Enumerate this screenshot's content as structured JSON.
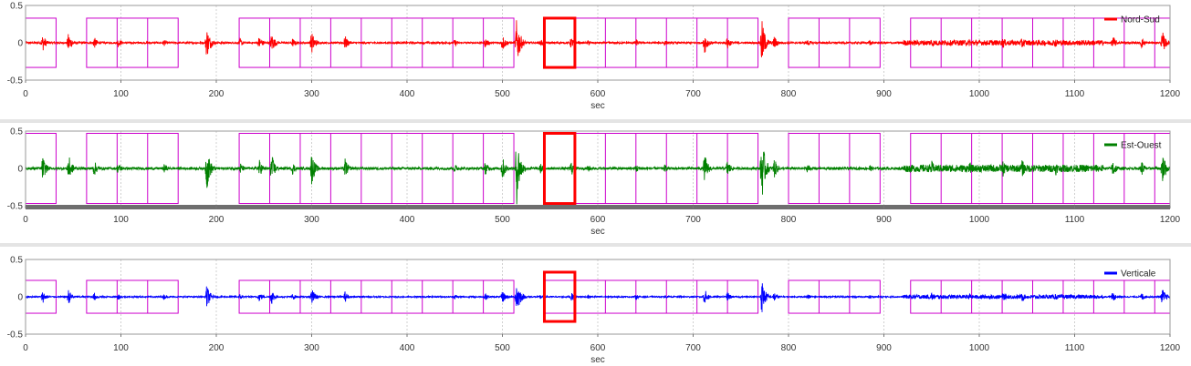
{
  "chart_data": [
    {
      "type": "line",
      "series": [
        {
          "name": "Nord-Sud",
          "color": "#ff0000"
        }
      ],
      "xlabel": "sec",
      "xlim": [
        0,
        1200
      ],
      "ylim": [
        -0.5,
        0.5
      ],
      "xticks": [
        "0",
        "100",
        "200",
        "300",
        "400",
        "500",
        "600",
        "700",
        "800",
        "900",
        "1000",
        "1100",
        "1200"
      ],
      "yticks": [
        "0.5",
        "0",
        "-0.5"
      ],
      "grid": true,
      "legend": "top-right",
      "window_half_height": 0.33
    },
    {
      "type": "line",
      "series": [
        {
          "name": "Est-Ouest",
          "color": "#008000"
        }
      ],
      "xlabel": "sec",
      "xlim": [
        0,
        1200
      ],
      "ylim": [
        -0.5,
        0.5
      ],
      "xticks": [
        "0",
        "100",
        "200",
        "300",
        "400",
        "500",
        "600",
        "700",
        "800",
        "900",
        "1000",
        "1100",
        "1200"
      ],
      "yticks": [
        "0.5",
        "0",
        "-0.5"
      ],
      "grid": true,
      "legend": "top-right",
      "window_half_height": 0.47
    },
    {
      "type": "line",
      "series": [
        {
          "name": "Verticale",
          "color": "#0000ff"
        }
      ],
      "xlabel": "sec",
      "xlim": [
        0,
        1200
      ],
      "ylim": [
        -0.5,
        0.5
      ],
      "xticks": [
        "0",
        "100",
        "200",
        "300",
        "400",
        "500",
        "600",
        "700",
        "800",
        "900",
        "1000",
        "1100",
        "1200"
      ],
      "yticks": [
        "0.5",
        "0",
        "-0.5"
      ],
      "grid": true,
      "legend": "top-right",
      "window_half_height": 0.22
    }
  ],
  "windows": {
    "color": "#cc00cc",
    "groups": [
      {
        "start": 0,
        "end": 32,
        "count": 1
      },
      {
        "start": 64,
        "end": 160,
        "count": 3
      },
      {
        "start": 224,
        "end": 512,
        "count": 9
      },
      {
        "start": 544,
        "end": 576,
        "count": 1
      },
      {
        "start": 576,
        "end": 768,
        "count": 6
      },
      {
        "start": 800,
        "end": 896,
        "count": 3
      },
      {
        "start": 928,
        "end": 1200,
        "count": 8.5
      }
    ],
    "selected": {
      "start": 544,
      "end": 576,
      "color": "#ff0000"
    }
  },
  "events": [
    {
      "t": 18,
      "amp": 0.12
    },
    {
      "t": 45,
      "amp": 0.14
    },
    {
      "t": 72,
      "amp": 0.08
    },
    {
      "t": 97,
      "amp": 0.06
    },
    {
      "t": 145,
      "amp": 0.05
    },
    {
      "t": 190,
      "amp": 0.22
    },
    {
      "t": 225,
      "amp": 0.06
    },
    {
      "t": 245,
      "amp": 0.09
    },
    {
      "t": 258,
      "amp": 0.14
    },
    {
      "t": 280,
      "amp": 0.06
    },
    {
      "t": 300,
      "amp": 0.16
    },
    {
      "t": 335,
      "amp": 0.1
    },
    {
      "t": 450,
      "amp": 0.05
    },
    {
      "t": 482,
      "amp": 0.07
    },
    {
      "t": 500,
      "amp": 0.12
    },
    {
      "t": 515,
      "amp": 0.35
    },
    {
      "t": 540,
      "amp": 0.05
    },
    {
      "t": 572,
      "amp": 0.08
    },
    {
      "t": 590,
      "amp": 0.04
    },
    {
      "t": 640,
      "amp": 0.05
    },
    {
      "t": 670,
      "amp": 0.04
    },
    {
      "t": 712,
      "amp": 0.15
    },
    {
      "t": 736,
      "amp": 0.09
    },
    {
      "t": 772,
      "amp": 0.32
    },
    {
      "t": 785,
      "amp": 0.1
    },
    {
      "t": 820,
      "amp": 0.05
    },
    {
      "t": 885,
      "amp": 0.04
    },
    {
      "t": 950,
      "amp": 0.08
    },
    {
      "t": 990,
      "amp": 0.06
    },
    {
      "t": 1025,
      "amp": 0.08
    },
    {
      "t": 1045,
      "amp": 0.09
    },
    {
      "t": 1080,
      "amp": 0.07
    },
    {
      "t": 1140,
      "amp": 0.1
    },
    {
      "t": 1170,
      "amp": 0.08
    },
    {
      "t": 1192,
      "amp": 0.16
    }
  ]
}
